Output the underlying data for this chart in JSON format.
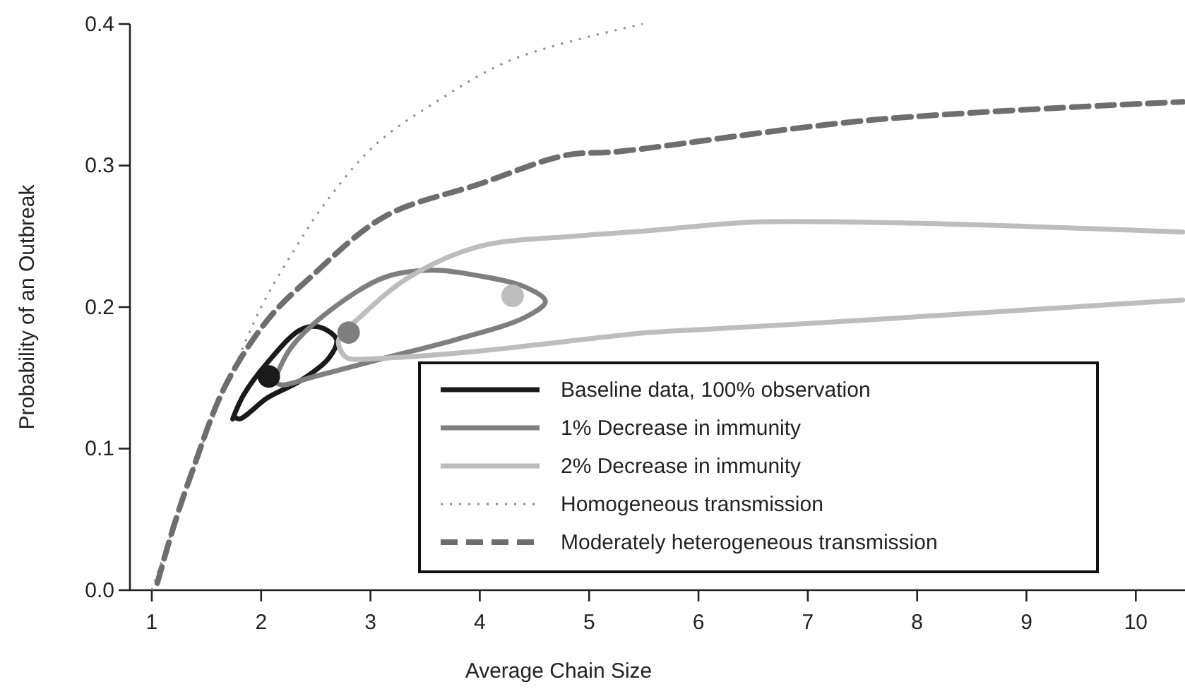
{
  "chart_data": {
    "type": "line",
    "xlabel": "Average Chain Size",
    "ylabel": "Probability of an Outbreak",
    "xlim": [
      0.8,
      10.45
    ],
    "xticks": [
      1,
      2,
      3,
      4,
      5,
      6,
      7,
      8,
      9,
      10
    ],
    "ylim": [
      0,
      0.4
    ],
    "yticks": [
      {
        "value": 0,
        "label": "0.0"
      },
      {
        "value": 0.1,
        "label": "0.1"
      },
      {
        "value": 0.2,
        "label": "0.2"
      },
      {
        "value": 0.3,
        "label": "0.3"
      },
      {
        "value": 0.4,
        "label": "0.4"
      }
    ],
    "grid": false,
    "legend": "bottom right",
    "series": [
      {
        "name": "Baseline data, 100% observation",
        "color": "#1a1a1a",
        "line_style": "solid",
        "x": [
          1.74,
          1.84,
          2.06,
          2.36,
          2.53,
          2.69,
          2.62,
          2.36,
          2.06,
          1.8,
          1.75
        ],
        "values": [
          0.121,
          0.138,
          0.161,
          0.184,
          0.186,
          0.177,
          0.164,
          0.148,
          0.136,
          0.121,
          0.123
        ]
      },
      {
        "name": "1% Decrease in immunity",
        "color": "#7f7f7f",
        "line_style": "solid",
        "x": [
          2.12,
          2.27,
          2.62,
          3.13,
          3.56,
          4.0,
          4.42,
          4.6,
          4.42,
          3.78,
          3.13,
          2.49,
          2.19,
          2.13
        ],
        "values": [
          0.148,
          0.171,
          0.197,
          0.221,
          0.226,
          0.222,
          0.214,
          0.204,
          0.193,
          0.177,
          0.164,
          0.151,
          0.145,
          0.147
        ]
      },
      {
        "name": "2% Decrease in immunity",
        "color": "#bdbdbd",
        "line_style": "solid",
        "x": [
          10.43,
          9.0,
          7.5,
          6.48,
          5.54,
          4.85,
          4.0,
          3.35,
          2.92,
          2.71,
          2.73,
          2.79,
          3.13,
          4.0,
          5.54,
          6.0,
          7.56,
          9.0,
          10.43
        ],
        "values": [
          0.253,
          0.257,
          0.26,
          0.26,
          0.254,
          0.25,
          0.243,
          0.221,
          0.194,
          0.177,
          0.169,
          0.164,
          0.164,
          0.169,
          0.182,
          0.184,
          0.191,
          0.198,
          0.205
        ]
      },
      {
        "name": "Homogeneous transmission",
        "color": "#8c8c8c",
        "line_style": "dotted",
        "x": [
          1.0,
          1.2,
          1.4,
          1.54,
          1.76,
          2.0,
          2.3,
          2.6,
          3.05,
          3.6,
          4.3,
          5.49
        ],
        "values": [
          0.0,
          0.045,
          0.09,
          0.118,
          0.158,
          0.2,
          0.24,
          0.275,
          0.315,
          0.345,
          0.375,
          0.4
        ]
      },
      {
        "name": "Moderately heterogeneous transmission",
        "color": "#6e6e6e",
        "line_style": "dashed",
        "x": [
          1.05,
          1.2,
          1.37,
          1.67,
          2.06,
          2.45,
          3.13,
          4.0,
          4.77,
          5.28,
          7.56,
          10.43
        ],
        "values": [
          0.005,
          0.045,
          0.084,
          0.144,
          0.191,
          0.221,
          0.264,
          0.287,
          0.307,
          0.31,
          0.332,
          0.345
        ]
      },
      {
        "type": "scatter",
        "color": "#1a1a1a",
        "marker": "circle",
        "x": [
          2.07
        ],
        "values": [
          0.151
        ]
      },
      {
        "type": "scatter",
        "color": "#7f7f7f",
        "marker": "circle",
        "x": [
          2.8
        ],
        "values": [
          0.182
        ]
      },
      {
        "type": "scatter",
        "color": "#bdbdbd",
        "marker": "circle",
        "x": [
          4.3
        ],
        "values": [
          0.208
        ]
      }
    ]
  }
}
